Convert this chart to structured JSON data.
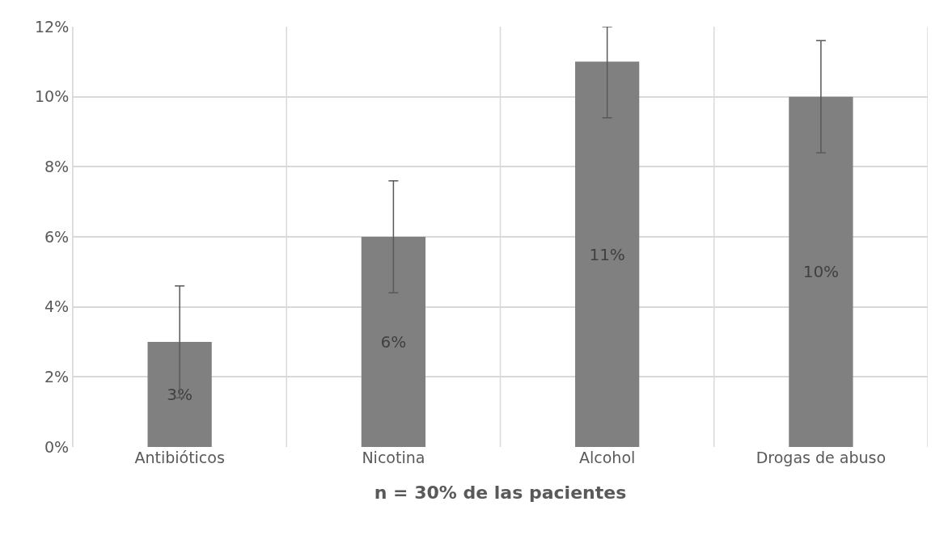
{
  "chart_data": {
    "type": "bar",
    "xlabel": "n = 30% de las pacientes",
    "categories": [
      "Antibióticos",
      "Nicotina",
      "Alcohol",
      "Drogas de abuso"
    ],
    "values": [
      3,
      6,
      11,
      10
    ],
    "value_labels": [
      "3%",
      "6%",
      "11%",
      "10%"
    ],
    "errors": [
      1.6,
      1.6,
      [
        9.4,
        12
      ],
      1.6
    ],
    "color": "#808080",
    "ylim": [
      0,
      12
    ],
    "yticks": [
      {
        "value": 0,
        "label": "0%"
      },
      {
        "value": 2,
        "label": "2%"
      },
      {
        "value": 4,
        "label": "4%"
      },
      {
        "value": 6,
        "label": "6%"
      },
      {
        "value": 8,
        "label": "8%"
      },
      {
        "value": 10,
        "label": "10%"
      },
      {
        "value": 12,
        "label": "12%"
      }
    ],
    "grid": true,
    "legend": false
  }
}
